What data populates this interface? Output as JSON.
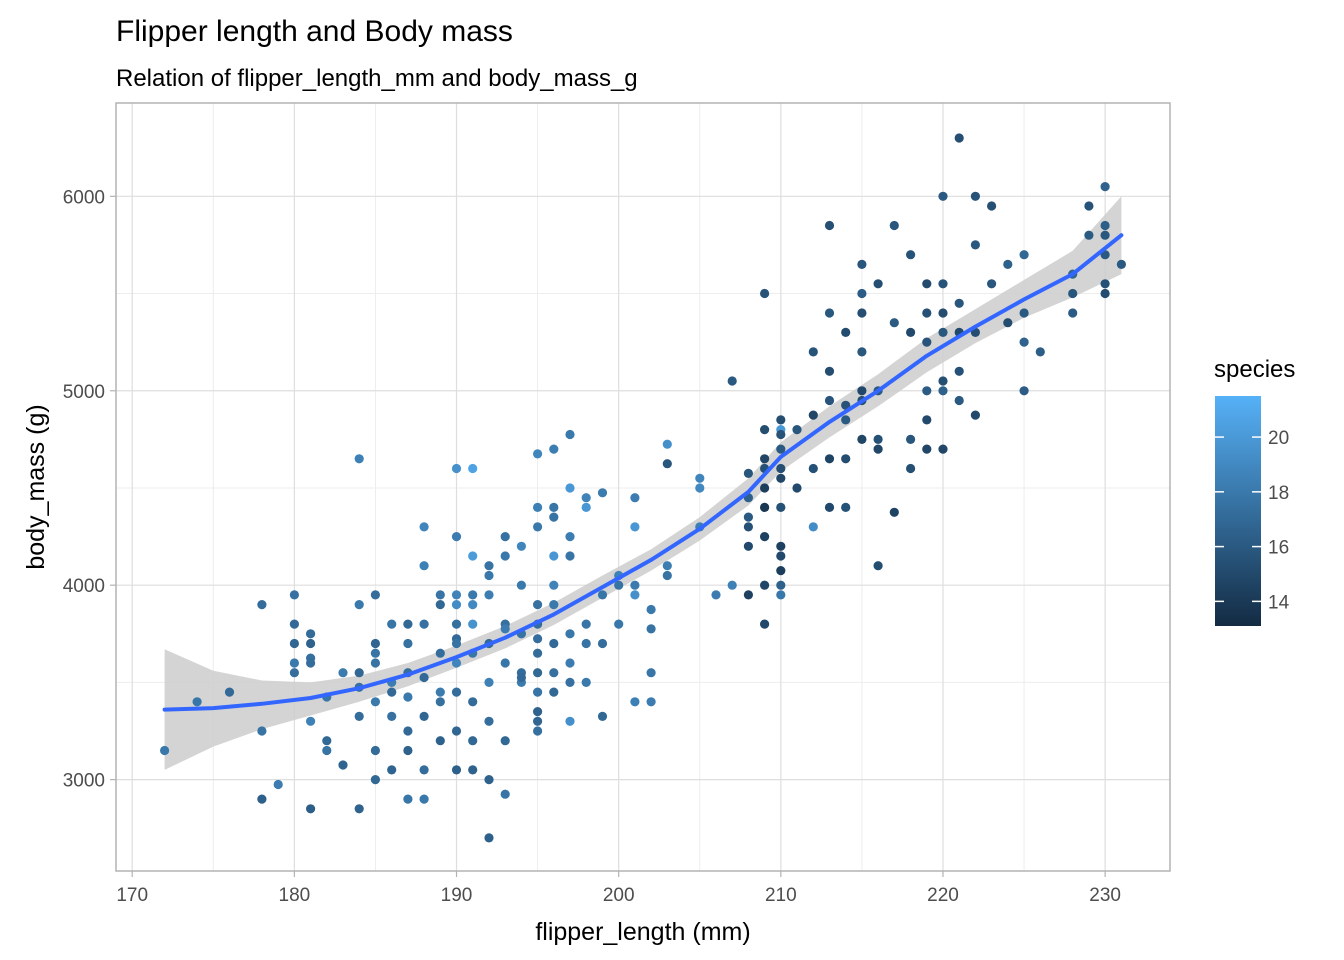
{
  "chart_data": {
    "type": "scatter",
    "title": "Flipper length and Body mass",
    "subtitle": "Relation of flipper_length_mm and body_mass_g",
    "xlabel": "flipper_length (mm)",
    "ylabel": "body_mass (g)",
    "xlim": [
      169,
      234
    ],
    "ylim": [
      2530,
      6480
    ],
    "xticks": [
      170,
      180,
      190,
      200,
      210,
      220,
      230
    ],
    "yticks": [
      3000,
      4000,
      5000,
      6000
    ],
    "grid": true,
    "legend": {
      "title": "species",
      "position": "right",
      "range": [
        13.1,
        21.5
      ],
      "ticks": [
        14,
        16,
        18,
        20
      ],
      "color_low": "#132b43",
      "color_high": "#56b1f7"
    },
    "smooth": {
      "color": "#3366ff",
      "band_color": "#cccccc",
      "x": [
        172,
        175,
        178,
        181,
        184,
        187,
        190,
        193,
        196,
        199,
        202,
        205,
        208,
        210,
        213,
        216,
        219,
        222,
        225,
        228,
        231
      ],
      "y": [
        3360,
        3368,
        3390,
        3420,
        3470,
        3540,
        3630,
        3730,
        3850,
        3990,
        4130,
        4290,
        4480,
        4660,
        4840,
        5000,
        5180,
        5330,
        5470,
        5600,
        5800
      ],
      "low": [
        3050,
        3170,
        3260,
        3330,
        3400,
        3480,
        3575,
        3675,
        3795,
        3935,
        4075,
        4230,
        4410,
        4585,
        4760,
        4920,
        5095,
        5245,
        5375,
        5480,
        5600
      ],
      "high": [
        3670,
        3560,
        3510,
        3500,
        3535,
        3600,
        3690,
        3790,
        3910,
        4050,
        4185,
        4350,
        4550,
        4735,
        4920,
        5085,
        5270,
        5420,
        5570,
        5720,
        6000
      ]
    },
    "points": [
      [
        172,
        3150,
        17.9
      ],
      [
        174,
        3400,
        17.8
      ],
      [
        176,
        3450,
        17.0
      ],
      [
        178,
        3250,
        17.6
      ],
      [
        178,
        3900,
        17.2
      ],
      [
        178,
        2900,
        16.4
      ],
      [
        179,
        2975,
        18.2
      ],
      [
        180,
        3950,
        17.5
      ],
      [
        180,
        3800,
        17.0
      ],
      [
        180,
        3700,
        16.8
      ],
      [
        180,
        3550,
        17.3
      ],
      [
        180,
        3600,
        18.0
      ],
      [
        181,
        3750,
        17.1
      ],
      [
        181,
        3700,
        16.5
      ],
      [
        181,
        3300,
        18.5
      ],
      [
        181,
        2850,
        16.3
      ],
      [
        181,
        3625,
        17.4
      ],
      [
        181,
        3600,
        17.2
      ],
      [
        182,
        3200,
        16.9
      ],
      [
        182,
        3150,
        17.6
      ],
      [
        182,
        3425,
        17.8
      ],
      [
        183,
        3550,
        18.1
      ],
      [
        183,
        3075,
        16.7
      ],
      [
        184,
        4650,
        18.4
      ],
      [
        184,
        3900,
        18.0
      ],
      [
        184,
        3475,
        17.4
      ],
      [
        184,
        3325,
        17.2
      ],
      [
        184,
        2850,
        16.6
      ],
      [
        184,
        3550,
        16.9
      ],
      [
        185,
        3950,
        17.3
      ],
      [
        185,
        3700,
        16.8
      ],
      [
        185,
        3650,
        17.7
      ],
      [
        185,
        3400,
        18.0
      ],
      [
        185,
        3150,
        17.1
      ],
      [
        185,
        3000,
        16.9
      ],
      [
        185,
        3600,
        17.6
      ],
      [
        186,
        3500,
        18.2
      ],
      [
        186,
        3450,
        17.0
      ],
      [
        186,
        3800,
        17.8
      ],
      [
        186,
        3050,
        16.7
      ],
      [
        186,
        3325,
        17.5
      ],
      [
        187,
        3800,
        16.9
      ],
      [
        187,
        3700,
        17.5
      ],
      [
        187,
        3550,
        17.3
      ],
      [
        187,
        3250,
        17.0
      ],
      [
        187,
        3150,
        16.6
      ],
      [
        187,
        2900,
        17.8
      ],
      [
        187,
        3425,
        18.0
      ],
      [
        188,
        4300,
        18.8
      ],
      [
        188,
        4100,
        18.4
      ],
      [
        188,
        3800,
        17.5
      ],
      [
        188,
        3525,
        17.0
      ],
      [
        188,
        3325,
        16.8
      ],
      [
        188,
        3050,
        17.2
      ],
      [
        188,
        2900,
        17.9
      ],
      [
        189,
        3950,
        17.7
      ],
      [
        189,
        3900,
        16.9
      ],
      [
        189,
        3650,
        17.3
      ],
      [
        189,
        3450,
        18.1
      ],
      [
        189,
        3400,
        17.4
      ],
      [
        189,
        3200,
        16.5
      ],
      [
        190,
        4600,
        19.5
      ],
      [
        190,
        4250,
        18.2
      ],
      [
        190,
        3950,
        18.6
      ],
      [
        190,
        3800,
        17.4
      ],
      [
        190,
        3725,
        17.0
      ],
      [
        190,
        3700,
        17.6
      ],
      [
        190,
        3600,
        18.8
      ],
      [
        190,
        3450,
        17.2
      ],
      [
        190,
        3250,
        16.8
      ],
      [
        190,
        3050,
        16.4
      ],
      [
        190,
        3900,
        19.2
      ],
      [
        191,
        4600,
        20.6
      ],
      [
        191,
        4150,
        20.2
      ],
      [
        191,
        3950,
        18.0
      ],
      [
        191,
        3900,
        19.0
      ],
      [
        191,
        3800,
        19.6
      ],
      [
        191,
        3650,
        17.8
      ],
      [
        191,
        3400,
        17.1
      ],
      [
        191,
        3200,
        16.9
      ],
      [
        191,
        3050,
        16.6
      ],
      [
        192,
        4100,
        17.6
      ],
      [
        192,
        4050,
        17.9
      ],
      [
        192,
        3950,
        18.3
      ],
      [
        192,
        3700,
        17.0
      ],
      [
        192,
        3500,
        18.5
      ],
      [
        192,
        3300,
        17.3
      ],
      [
        192,
        3000,
        16.6
      ],
      [
        192,
        2700,
        16.4
      ],
      [
        193,
        4250,
        17.5
      ],
      [
        193,
        4150,
        17.9
      ],
      [
        193,
        3800,
        17.4
      ],
      [
        193,
        3775,
        18.2
      ],
      [
        193,
        3600,
        17.8
      ],
      [
        193,
        3200,
        16.9
      ],
      [
        193,
        2925,
        17.7
      ],
      [
        194,
        4200,
        18.8
      ],
      [
        194,
        4000,
        18.0
      ],
      [
        194,
        3750,
        17.6
      ],
      [
        194,
        3550,
        17.2
      ],
      [
        194,
        3500,
        18.1
      ],
      [
        194,
        3525,
        17.0
      ],
      [
        195,
        4675,
        18.8
      ],
      [
        195,
        4400,
        18.4
      ],
      [
        195,
        4300,
        17.9
      ],
      [
        195,
        3900,
        17.5
      ],
      [
        195,
        3725,
        17.3
      ],
      [
        195,
        3650,
        17.1
      ],
      [
        195,
        3550,
        16.9
      ],
      [
        195,
        3450,
        17.7
      ],
      [
        195,
        3350,
        16.6
      ],
      [
        195,
        3300,
        16.8
      ],
      [
        195,
        3250,
        17.4
      ],
      [
        195,
        3800,
        17.2
      ],
      [
        196,
        4700,
        18.3
      ],
      [
        196,
        4400,
        17.8
      ],
      [
        196,
        4350,
        17.6
      ],
      [
        196,
        4150,
        19.8
      ],
      [
        196,
        4000,
        18.6
      ],
      [
        196,
        3900,
        18.0
      ],
      [
        196,
        3700,
        17.0
      ],
      [
        196,
        3550,
        17.4
      ],
      [
        196,
        3450,
        16.9
      ],
      [
        197,
        4775,
        18.0
      ],
      [
        197,
        4500,
        19.9
      ],
      [
        197,
        4150,
        17.7
      ],
      [
        197,
        3750,
        17.9
      ],
      [
        197,
        3600,
        18.2
      ],
      [
        197,
        3500,
        17.5
      ],
      [
        197,
        3300,
        19.4
      ],
      [
        197,
        4250,
        18.3
      ],
      [
        198,
        4450,
        18.6
      ],
      [
        198,
        4400,
        19.8
      ],
      [
        198,
        3800,
        17.7
      ],
      [
        198,
        3700,
        17.6
      ],
      [
        198,
        3500,
        18.0
      ],
      [
        199,
        4475,
        18.1
      ],
      [
        199,
        3950,
        17.8
      ],
      [
        199,
        3325,
        16.9
      ],
      [
        199,
        3700,
        17.3
      ],
      [
        200,
        4050,
        18.5
      ],
      [
        200,
        4000,
        17.6
      ],
      [
        200,
        3800,
        17.9
      ],
      [
        201,
        4450,
        18.2
      ],
      [
        201,
        4300,
        19.8
      ],
      [
        201,
        4000,
        18.1
      ],
      [
        201,
        3950,
        19.4
      ],
      [
        201,
        3400,
        18.4
      ],
      [
        202,
        3875,
        18.0
      ],
      [
        202,
        3775,
        17.6
      ],
      [
        202,
        3550,
        17.8
      ],
      [
        202,
        3400,
        18.2
      ],
      [
        203,
        4725,
        19.4
      ],
      [
        203,
        4625,
        15.8
      ],
      [
        203,
        4100,
        18.3
      ],
      [
        203,
        4050,
        17.6
      ],
      [
        205,
        4550,
        18.8
      ],
      [
        205,
        4500,
        19.0
      ],
      [
        205,
        4300,
        18.3
      ],
      [
        206,
        3950,
        18.2
      ],
      [
        207,
        5050,
        16.0
      ],
      [
        207,
        4000,
        18.5
      ],
      [
        208,
        4575,
        15.8
      ],
      [
        208,
        4450,
        16.4
      ],
      [
        208,
        4350,
        16.0
      ],
      [
        208,
        4300,
        15.5
      ],
      [
        208,
        4200,
        15.0
      ],
      [
        208,
        3950,
        14.5
      ],
      [
        209,
        5500,
        15.6
      ],
      [
        209,
        4800,
        15.2
      ],
      [
        209,
        4650,
        14.8
      ],
      [
        209,
        4600,
        15.5
      ],
      [
        209,
        4500,
        14.2
      ],
      [
        209,
        4400,
        13.8
      ],
      [
        209,
        4250,
        14.5
      ],
      [
        209,
        4000,
        14.8
      ],
      [
        209,
        3800,
        15.0
      ],
      [
        210,
        4850,
        15.2
      ],
      [
        210,
        4800,
        20.0
      ],
      [
        210,
        4775,
        15.6
      ],
      [
        210,
        4700,
        16.0
      ],
      [
        210,
        4600,
        15.3
      ],
      [
        210,
        4550,
        14.8
      ],
      [
        210,
        4400,
        15.5
      ],
      [
        210,
        4200,
        14.5
      ],
      [
        210,
        4150,
        15.0
      ],
      [
        210,
        4075,
        14.2
      ],
      [
        210,
        4000,
        16.5
      ],
      [
        210,
        3950,
        17.9
      ],
      [
        211,
        4800,
        15.8
      ],
      [
        211,
        4500,
        15.0
      ],
      [
        212,
        5200,
        15.6
      ],
      [
        212,
        4875,
        14.8
      ],
      [
        212,
        4600,
        15.5
      ],
      [
        212,
        4300,
        19.2
      ],
      [
        213,
        5850,
        15.4
      ],
      [
        213,
        5400,
        15.9
      ],
      [
        213,
        5100,
        15.2
      ],
      [
        213,
        4950,
        15.7
      ],
      [
        213,
        4650,
        14.6
      ],
      [
        213,
        4400,
        15.0
      ],
      [
        214,
        5300,
        15.1
      ],
      [
        214,
        4925,
        15.6
      ],
      [
        214,
        4850,
        16.0
      ],
      [
        214,
        4650,
        15.2
      ],
      [
        214,
        4400,
        15.5
      ],
      [
        215,
        5650,
        15.8
      ],
      [
        215,
        5500,
        16.2
      ],
      [
        215,
        5400,
        15.3
      ],
      [
        215,
        5200,
        15.9
      ],
      [
        215,
        5000,
        14.9
      ],
      [
        215,
        4950,
        15.4
      ],
      [
        215,
        4750,
        14.7
      ],
      [
        216,
        5550,
        15.3
      ],
      [
        216,
        5000,
        16.0
      ],
      [
        216,
        4750,
        15.5
      ],
      [
        216,
        4700,
        14.8
      ],
      [
        216,
        4100,
        15.2
      ],
      [
        217,
        5850,
        15.8
      ],
      [
        217,
        5350,
        16.1
      ],
      [
        217,
        4375,
        14.6
      ],
      [
        218,
        5700,
        15.6
      ],
      [
        218,
        5300,
        15.0
      ],
      [
        218,
        4600,
        15.4
      ],
      [
        218,
        4750,
        15.8
      ],
      [
        219,
        5550,
        15.1
      ],
      [
        219,
        5250,
        15.7
      ],
      [
        219,
        5000,
        16.2
      ],
      [
        219,
        4850,
        15.0
      ],
      [
        219,
        4700,
        14.8
      ],
      [
        219,
        5400,
        15.5
      ],
      [
        220,
        6000,
        16.0
      ],
      [
        220,
        5550,
        15.6
      ],
      [
        220,
        5400,
        15.2
      ],
      [
        220,
        5300,
        15.9
      ],
      [
        220,
        5050,
        15.4
      ],
      [
        220,
        4700,
        14.8
      ],
      [
        220,
        5000,
        16.5
      ],
      [
        221,
        6300,
        15.3
      ],
      [
        221,
        5450,
        15.8
      ],
      [
        221,
        5300,
        15.0
      ],
      [
        221,
        5100,
        15.5
      ],
      [
        221,
        4950,
        16.0
      ],
      [
        222,
        6000,
        15.6
      ],
      [
        222,
        5750,
        15.9
      ],
      [
        222,
        5300,
        15.3
      ],
      [
        222,
        4875,
        15.0
      ],
      [
        223,
        5950,
        15.4
      ],
      [
        223,
        5550,
        15.8
      ],
      [
        224,
        5650,
        16.5
      ],
      [
        224,
        5350,
        15.2
      ],
      [
        225,
        5700,
        16.9
      ],
      [
        225,
        5400,
        16.0
      ],
      [
        225,
        5250,
        16.6
      ],
      [
        225,
        5000,
        16.2
      ],
      [
        226,
        5200,
        16.3
      ],
      [
        228,
        5600,
        16.8
      ],
      [
        228,
        5500,
        15.8
      ],
      [
        228,
        5400,
        16.2
      ],
      [
        229,
        5950,
        15.6
      ],
      [
        229,
        5800,
        16.1
      ],
      [
        230,
        6050,
        16.6
      ],
      [
        230,
        5850,
        16.3
      ],
      [
        230,
        5800,
        15.9
      ],
      [
        230,
        5700,
        16.0
      ],
      [
        230,
        5550,
        15.5
      ],
      [
        230,
        5500,
        15.2
      ],
      [
        231,
        5650,
        16.0
      ]
    ]
  }
}
